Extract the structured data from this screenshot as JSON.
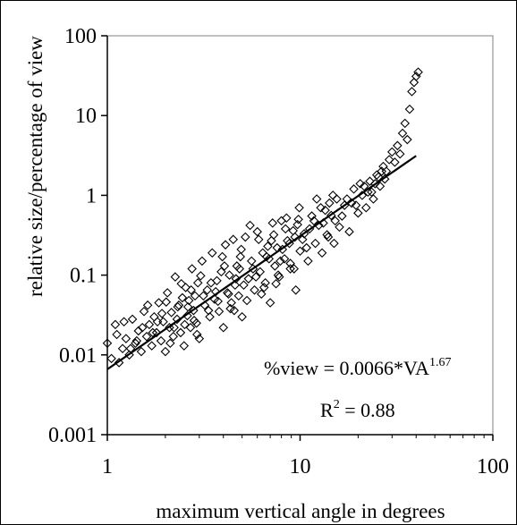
{
  "chart_data": {
    "type": "scatter",
    "title": "",
    "xlabel": "maximum vertical angle in degrees",
    "ylabel": "relative size/percentage of view",
    "xscale": "log",
    "yscale": "log",
    "xlim": [
      1,
      100
    ],
    "ylim": [
      0.001,
      100
    ],
    "x_ticks": [
      1,
      10,
      100
    ],
    "x_tick_labels": [
      "1",
      "10",
      "100"
    ],
    "y_ticks": [
      0.001,
      0.01,
      0.1,
      1,
      10,
      100
    ],
    "y_tick_labels": [
      "0.001",
      "0.01",
      "0.1",
      "1",
      "10",
      "100"
    ],
    "grid": false,
    "legend": "none",
    "marker": "open-diamond",
    "series": [
      {
        "points": [
          [
            1.0,
            0.014
          ],
          [
            1.05,
            0.009
          ],
          [
            1.1,
            0.024
          ],
          [
            1.15,
            0.008
          ],
          [
            1.2,
            0.012
          ],
          [
            1.25,
            0.016
          ],
          [
            1.3,
            0.01
          ],
          [
            1.35,
            0.028
          ],
          [
            1.4,
            0.014
          ],
          [
            1.45,
            0.02
          ],
          [
            1.5,
            0.011
          ],
          [
            1.55,
            0.035
          ],
          [
            1.6,
            0.017
          ],
          [
            1.65,
            0.024
          ],
          [
            1.7,
            0.013
          ],
          [
            1.75,
            0.03
          ],
          [
            1.8,
            0.019
          ],
          [
            1.85,
            0.045
          ],
          [
            1.9,
            0.015
          ],
          [
            1.95,
            0.026
          ],
          [
            2.0,
            0.011
          ],
          [
            2.05,
            0.06
          ],
          [
            2.1,
            0.022
          ],
          [
            2.15,
            0.034
          ],
          [
            2.2,
            0.017
          ],
          [
            2.25,
            0.095
          ],
          [
            2.3,
            0.028
          ],
          [
            2.35,
            0.042
          ],
          [
            2.4,
            0.019
          ],
          [
            2.45,
            0.052
          ],
          [
            2.5,
            0.013
          ],
          [
            2.55,
            0.07
          ],
          [
            2.6,
            0.031
          ],
          [
            2.65,
            0.048
          ],
          [
            2.7,
            0.022
          ],
          [
            2.75,
            0.12
          ],
          [
            2.8,
            0.036
          ],
          [
            2.85,
            0.055
          ],
          [
            2.9,
            0.025
          ],
          [
            2.95,
            0.08
          ],
          [
            3.0,
            0.016
          ],
          [
            3.1,
            0.15
          ],
          [
            3.2,
            0.042
          ],
          [
            3.3,
            0.065
          ],
          [
            3.4,
            0.03
          ],
          [
            3.5,
            0.19
          ],
          [
            3.6,
            0.05
          ],
          [
            3.7,
            0.085
          ],
          [
            3.8,
            0.035
          ],
          [
            3.9,
            0.11
          ],
          [
            4.0,
            0.022
          ],
          [
            4.1,
            0.24
          ],
          [
            4.2,
            0.06
          ],
          [
            4.3,
            0.1
          ],
          [
            4.4,
            0.045
          ],
          [
            4.5,
            0.28
          ],
          [
            4.6,
            0.075
          ],
          [
            4.7,
            0.13
          ],
          [
            4.8,
            0.055
          ],
          [
            4.9,
            0.17
          ],
          [
            5.0,
            0.03
          ],
          [
            5.2,
            0.3
          ],
          [
            5.4,
            0.09
          ],
          [
            5.6,
            0.15
          ],
          [
            5.8,
            0.065
          ],
          [
            6.0,
            0.35
          ],
          [
            6.2,
            0.11
          ],
          [
            6.4,
            0.19
          ],
          [
            6.6,
            0.08
          ],
          [
            6.8,
            0.23
          ],
          [
            7.0,
            0.045
          ],
          [
            7.2,
            0.45
          ],
          [
            7.4,
            0.13
          ],
          [
            7.6,
            0.22
          ],
          [
            7.8,
            0.095
          ],
          [
            8.0,
            0.48
          ],
          [
            8.3,
            0.16
          ],
          [
            8.6,
            0.27
          ],
          [
            8.9,
            0.12
          ],
          [
            9.2,
            0.36
          ],
          [
            9.5,
            0.065
          ],
          [
            9.8,
            0.5
          ],
          [
            10.0,
            0.2
          ],
          [
            10.5,
            0.33
          ],
          [
            11.0,
            0.15
          ],
          [
            11.5,
            0.55
          ],
          [
            12.0,
            0.25
          ],
          [
            12.5,
            0.42
          ],
          [
            13.0,
            0.19
          ],
          [
            13.5,
            0.65
          ],
          [
            14.0,
            0.3
          ],
          [
            14.5,
            0.56
          ],
          [
            15.0,
            0.25
          ],
          [
            15.5,
            0.9
          ],
          [
            16.0,
            0.4
          ],
          [
            17.0,
            0.75
          ],
          [
            18.0,
            0.35
          ],
          [
            19.0,
            1.2
          ],
          [
            20.0,
            0.6
          ],
          [
            21.0,
            1.0
          ],
          [
            22.0,
            0.7
          ],
          [
            23.0,
            1.5
          ],
          [
            24.0,
            0.9
          ],
          [
            25.0,
            1.8
          ],
          [
            26.0,
            1.3
          ],
          [
            27.0,
            2.3
          ],
          [
            28.0,
            2.0
          ],
          [
            29.0,
            2.8
          ],
          [
            30.0,
            3.5
          ],
          [
            31.0,
            2.6
          ],
          [
            32.0,
            4.2
          ],
          [
            33.0,
            3.3
          ],
          [
            34.0,
            6.0
          ],
          [
            35.0,
            8.0
          ],
          [
            36.0,
            5.0
          ],
          [
            37.0,
            12.0
          ],
          [
            38.0,
            20.0
          ],
          [
            39.0,
            26.0
          ],
          [
            40.0,
            31.0
          ],
          [
            41.0,
            35.0
          ],
          [
            1.12,
            0.018
          ],
          [
            1.32,
            0.012
          ],
          [
            1.52,
            0.022
          ],
          [
            1.72,
            0.019
          ],
          [
            1.92,
            0.033
          ],
          [
            2.12,
            0.014
          ],
          [
            2.32,
            0.04
          ],
          [
            2.52,
            0.024
          ],
          [
            2.72,
            0.065
          ],
          [
            2.92,
            0.018
          ],
          [
            3.15,
            0.055
          ],
          [
            3.45,
            0.08
          ],
          [
            3.75,
            0.047
          ],
          [
            4.05,
            0.13
          ],
          [
            4.35,
            0.038
          ],
          [
            4.65,
            0.09
          ],
          [
            4.95,
            0.21
          ],
          [
            5.3,
            0.048
          ],
          [
            5.7,
            0.12
          ],
          [
            6.1,
            0.28
          ],
          [
            6.5,
            0.07
          ],
          [
            6.9,
            0.16
          ],
          [
            7.3,
            0.32
          ],
          [
            7.7,
            0.1
          ],
          [
            8.1,
            0.21
          ],
          [
            8.5,
            0.52
          ],
          [
            8.9,
            0.14
          ],
          [
            9.4,
            0.3
          ],
          [
            9.9,
            0.7
          ],
          [
            10.8,
            0.22
          ],
          [
            11.8,
            0.48
          ],
          [
            12.8,
            0.7
          ],
          [
            13.8,
            0.32
          ],
          [
            14.8,
            1.0
          ],
          [
            16.5,
            0.55
          ],
          [
            18.5,
            0.8
          ],
          [
            20.5,
            1.4
          ],
          [
            22.5,
            1.1
          ],
          [
            24.5,
            1.4
          ],
          [
            26.5,
            2.0
          ],
          [
            1.22,
            0.026
          ],
          [
            1.42,
            0.015
          ],
          [
            1.62,
            0.042
          ],
          [
            1.82,
            0.026
          ],
          [
            2.02,
            0.046
          ],
          [
            2.22,
            0.022
          ],
          [
            2.42,
            0.078
          ],
          [
            2.62,
            0.04
          ],
          [
            2.82,
            0.027
          ],
          [
            3.05,
            0.098
          ],
          [
            3.35,
            0.036
          ],
          [
            3.65,
            0.062
          ],
          [
            3.95,
            0.17
          ],
          [
            4.25,
            0.058
          ],
          [
            4.55,
            0.036
          ],
          [
            4.85,
            0.12
          ],
          [
            5.1,
            0.075
          ],
          [
            5.5,
            0.42
          ],
          [
            5.9,
            0.095
          ],
          [
            6.3,
            0.058
          ],
          [
            6.7,
            0.17
          ],
          [
            7.1,
            0.27
          ],
          [
            7.5,
            0.078
          ],
          [
            7.9,
            0.15
          ],
          [
            8.4,
            0.38
          ],
          [
            8.8,
            0.25
          ],
          [
            9.3,
            0.12
          ],
          [
            9.7,
            0.43
          ],
          [
            10.3,
            0.28
          ],
          [
            11.2,
            0.38
          ],
          [
            12.2,
            0.9
          ],
          [
            13.2,
            0.45
          ],
          [
            14.2,
            0.8
          ],
          [
            15.2,
            0.48
          ],
          [
            17.5,
            0.9
          ],
          [
            19.5,
            0.75
          ],
          [
            21.5,
            1.3
          ],
          [
            23.5,
            1.1
          ],
          [
            25.5,
            1.7
          ],
          [
            27.5,
            1.6
          ]
        ]
      }
    ],
    "fit": {
      "type": "power",
      "coefficient": 0.0066,
      "exponent": 1.67,
      "x_range": [
        1,
        40
      ]
    },
    "annotations": {
      "equation_main": "%view = 0.0066*VA",
      "equation_exp": "1.67",
      "r2_main": "R",
      "r2_sup": "2",
      "r2_value": " = 0.88"
    }
  }
}
